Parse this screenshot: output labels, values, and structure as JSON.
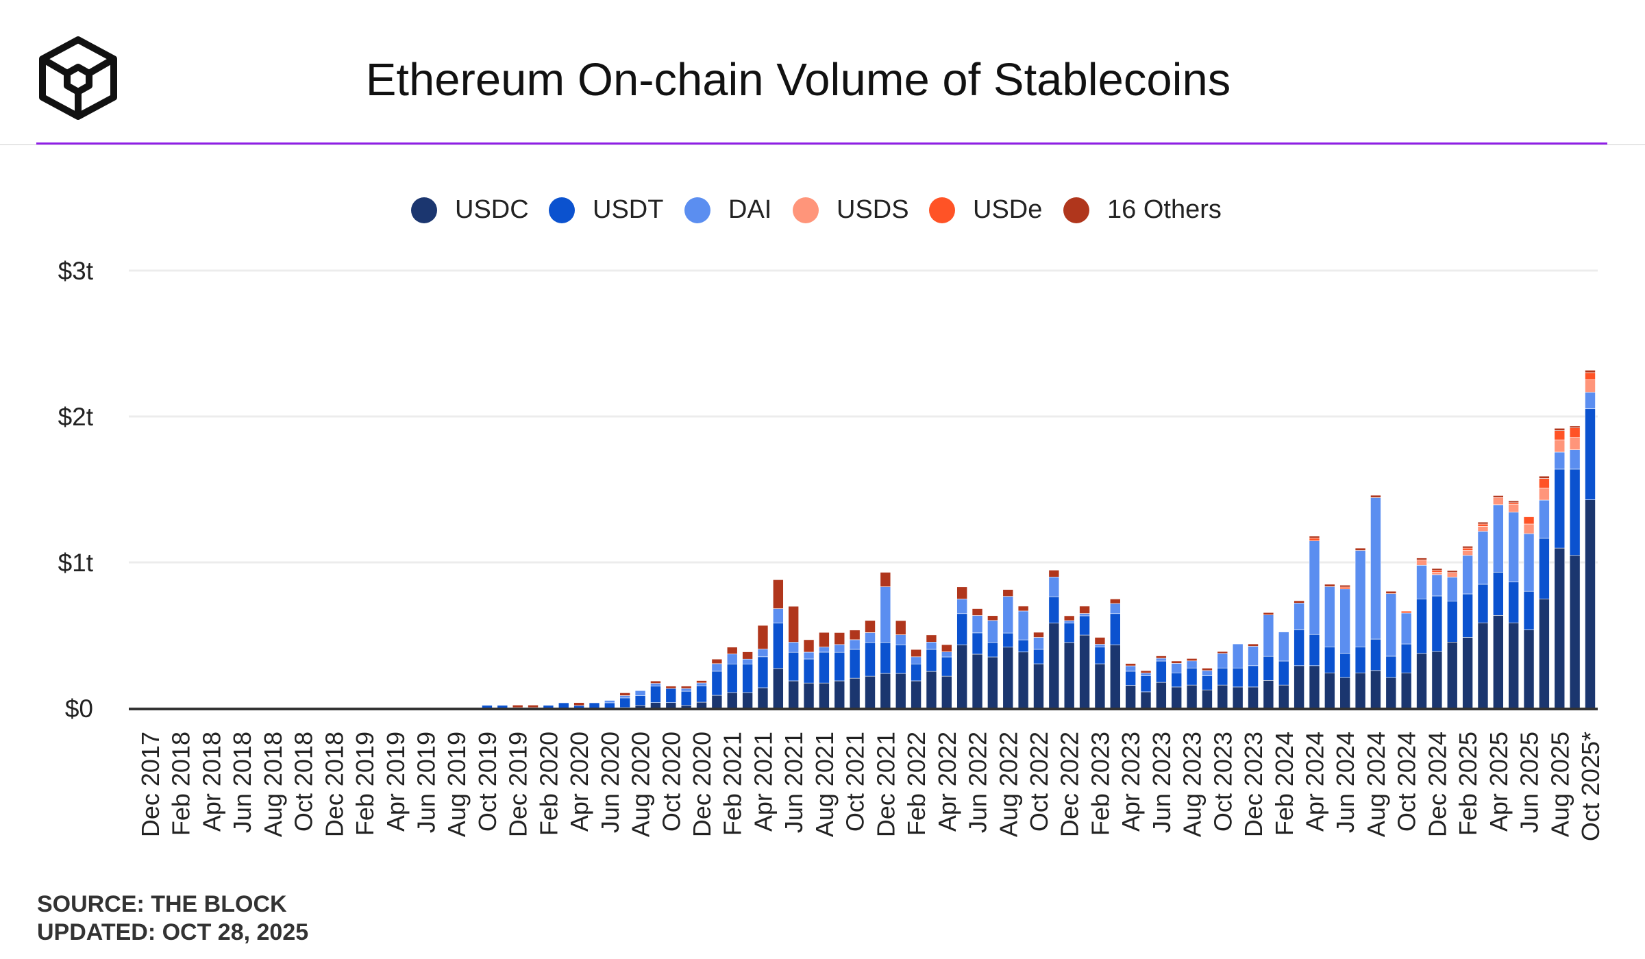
{
  "header": {
    "title": "Ethereum On-chain Volume of Stablecoins",
    "logo": "the-block-cube-logo"
  },
  "legend": [
    {
      "label": "USDC",
      "color": "#1b366f"
    },
    {
      "label": "USDT",
      "color": "#0b52cf"
    },
    {
      "label": "DAI",
      "color": "#5b8ef0"
    },
    {
      "label": "USDS",
      "color": "#ff957a"
    },
    {
      "label": "USDe",
      "color": "#ff5326"
    },
    {
      "label": "16 Others",
      "color": "#b0361c"
    }
  ],
  "footer": {
    "source": "SOURCE: THE BLOCK",
    "updated": "UPDATED: OCT 28, 2025"
  },
  "chart_data": {
    "type": "bar",
    "stacked": true,
    "title": "Ethereum On-chain Volume of Stablecoins",
    "unit": "USD billions",
    "ylim": [
      0,
      3000
    ],
    "yticks": [
      {
        "value": 0,
        "label": "$0"
      },
      {
        "value": 1000,
        "label": "$1t"
      },
      {
        "value": 2000,
        "label": "$2t"
      },
      {
        "value": 3000,
        "label": "$3t"
      }
    ],
    "grid": true,
    "legend_position": "top",
    "categories": [
      "Dec 2017",
      "Jan 2018",
      "Feb 2018",
      "Mar 2018",
      "Apr 2018",
      "May 2018",
      "Jun 2018",
      "Jul 2018",
      "Aug 2018",
      "Sep 2018",
      "Oct 2018",
      "Nov 2018",
      "Dec 2018",
      "Jan 2019",
      "Feb 2019",
      "Mar 2019",
      "Apr 2019",
      "May 2019",
      "Jun 2019",
      "Jul 2019",
      "Aug 2019",
      "Sep 2019",
      "Oct 2019",
      "Nov 2019",
      "Dec 2019",
      "Jan 2020",
      "Feb 2020",
      "Mar 2020",
      "Apr 2020",
      "May 2020",
      "Jun 2020",
      "Jul 2020",
      "Aug 2020",
      "Sep 2020",
      "Oct 2020",
      "Nov 2020",
      "Dec 2020",
      "Jan 2021",
      "Feb 2021",
      "Mar 2021",
      "Apr 2021",
      "May 2021",
      "Jun 2021",
      "Jul 2021",
      "Aug 2021",
      "Sep 2021",
      "Oct 2021",
      "Nov 2021",
      "Dec 2021",
      "Jan 2022",
      "Feb 2022",
      "Mar 2022",
      "Apr 2022",
      "May 2022",
      "Jun 2022",
      "Jul 2022",
      "Aug 2022",
      "Sep 2022",
      "Oct 2022",
      "Nov 2022",
      "Dec 2022",
      "Jan 2023",
      "Feb 2023",
      "Mar 2023",
      "Apr 2023",
      "May 2023",
      "Jun 2023",
      "Jul 2023",
      "Aug 2023",
      "Sep 2023",
      "Oct 2023",
      "Nov 2023",
      "Dec 2023",
      "Jan 2024",
      "Feb 2024",
      "Mar 2024",
      "Apr 2024",
      "May 2024",
      "Jun 2024",
      "Jul 2024",
      "Aug 2024",
      "Sep 2024",
      "Oct 2024",
      "Nov 2024",
      "Dec 2024",
      "Jan 2025",
      "Feb 2025",
      "Mar 2025",
      "Apr 2025",
      "May 2025",
      "Jun 2025",
      "Jul 2025",
      "Aug 2025",
      "Sep 2025",
      "Oct 2025*"
    ],
    "tick_labels": [
      "Dec 2017",
      "Feb 2018",
      "Apr 2018",
      "Jun 2018",
      "Aug 2018",
      "Oct 2018",
      "Dec 2018",
      "Feb 2019",
      "Apr 2019",
      "Jun 2019",
      "Aug 2019",
      "Oct 2019",
      "Dec 2019",
      "Feb 2020",
      "Apr 2020",
      "Jun 2020",
      "Aug 2020",
      "Oct 2020",
      "Dec 2020",
      "Feb 2021",
      "Apr 2021",
      "Jun 2021",
      "Aug 2021",
      "Oct 2021",
      "Dec 2021",
      "Feb 2022",
      "Apr 2022",
      "Jun 2022",
      "Aug 2022",
      "Oct 2022",
      "Dec 2022",
      "Feb 2023",
      "Apr 2023",
      "Jun 2023",
      "Aug 2023",
      "Oct 2023",
      "Dec 2023",
      "Feb 2024",
      "Apr 2024",
      "Jun 2024",
      "Aug 2024",
      "Oct 2024",
      "Dec 2024",
      "Feb 2025",
      "Apr 2025",
      "Jun 2025",
      "Aug 2025",
      "Oct 2025*"
    ],
    "series": [
      {
        "name": "USDC",
        "values": [
          0,
          0,
          0,
          0,
          0,
          0,
          0,
          0,
          0,
          0,
          0,
          0,
          0,
          0,
          0,
          0,
          0,
          0,
          0,
          0,
          0,
          0,
          0,
          0,
          0,
          0,
          0,
          0,
          0,
          0,
          0,
          5,
          20,
          39,
          39,
          20,
          42,
          89,
          108,
          108,
          141,
          273,
          188,
          173,
          173,
          188,
          206,
          220,
          239,
          239,
          188,
          253,
          220,
          435,
          371,
          352,
          419,
          386,
          305,
          584,
          451,
          502,
          305,
          435,
          157,
          113,
          178,
          146,
          159,
          126,
          159,
          146,
          146,
          191,
          159,
          292,
          292,
          243,
          211,
          243,
          259,
          211,
          243,
          376,
          389,
          454,
          486,
          586,
          637,
          586,
          538,
          750,
          1098,
          1048,
          1429
        ]
      },
      {
        "name": "USDT",
        "values": [
          0,
          0,
          0,
          0,
          0,
          0,
          0,
          0,
          0,
          0,
          0,
          0,
          0,
          0,
          0,
          0,
          0,
          0,
          1,
          5,
          5,
          5,
          21,
          21,
          5,
          5,
          21,
          38,
          19,
          38,
          38,
          66,
          66,
          113,
          97,
          97,
          113,
          165,
          196,
          196,
          212,
          311,
          196,
          165,
          212,
          196,
          198,
          231,
          212,
          196,
          116,
          151,
          132,
          214,
          146,
          99,
          97,
          83,
          99,
          181,
          133,
          132,
          115,
          214,
          97,
          110,
          146,
          97,
          117,
          97,
          117,
          130,
          146,
          165,
          165,
          246,
          214,
          178,
          165,
          178,
          215,
          146,
          198,
          374,
          381,
          280,
          298,
          264,
          296,
          280,
          264,
          415,
          541,
          591,
          624
        ]
      },
      {
        "name": "DAI",
        "values": [
          0,
          0,
          0,
          0,
          0,
          0,
          0,
          0,
          0,
          0,
          0,
          0,
          0,
          0,
          0,
          0,
          0,
          0,
          0,
          1,
          1,
          1,
          1,
          1,
          0,
          0,
          1,
          2,
          0,
          2,
          16,
          16,
          35,
          19,
          0,
          19,
          19,
          52,
          68,
          33,
          53,
          99,
          69,
          47,
          35,
          53,
          66,
          68,
          382,
          69,
          49,
          50,
          35,
          100,
          119,
          151,
          251,
          198,
          82,
          135,
          17,
          16,
          19,
          69,
          37,
          19,
          19,
          65,
          49,
          36,
          100,
          165,
          133,
          284,
          199,
          183,
          642,
          413,
          442,
          661,
          970,
          429,
          212,
          230,
          146,
          165,
          264,
          363,
          462,
          478,
          395,
          262,
          117,
          133,
          113
        ]
      },
      {
        "name": "USDS",
        "values": [
          0,
          0,
          0,
          0,
          0,
          0,
          0,
          0,
          0,
          0,
          0,
          0,
          0,
          0,
          0,
          0,
          0,
          0,
          0,
          0,
          0,
          0,
          0,
          0,
          0,
          0,
          0,
          0,
          0,
          0,
          0,
          0,
          0,
          0,
          0,
          0,
          0,
          0,
          0,
          0,
          0,
          0,
          0,
          0,
          0,
          0,
          0,
          0,
          0,
          0,
          0,
          0,
          0,
          0,
          0,
          0,
          0,
          0,
          0,
          0,
          0,
          0,
          0,
          0,
          0,
          0,
          0,
          0,
          0,
          0,
          0,
          0,
          0,
          0,
          0,
          0,
          0,
          0,
          0,
          0,
          0,
          0,
          0,
          37,
          16,
          32,
          34,
          34,
          50,
          52,
          66,
          83,
          84,
          84,
          86
        ]
      },
      {
        "name": "USDe",
        "values": [
          0,
          0,
          0,
          0,
          0,
          0,
          0,
          0,
          0,
          0,
          0,
          0,
          0,
          0,
          0,
          0,
          0,
          0,
          0,
          0,
          0,
          0,
          0,
          0,
          0,
          0,
          0,
          0,
          0,
          0,
          0,
          0,
          0,
          0,
          0,
          0,
          0,
          0,
          0,
          0,
          0,
          0,
          0,
          0,
          0,
          0,
          0,
          0,
          0,
          0,
          0,
          0,
          0,
          0,
          0,
          0,
          0,
          0,
          0,
          0,
          0,
          0,
          0,
          0,
          0,
          0,
          0,
          0,
          0,
          0,
          0,
          0,
          0,
          0,
          0,
          0,
          19,
          0,
          13,
          0,
          0,
          0,
          13,
          0,
          13,
          0,
          16,
          16,
          0,
          13,
          49,
          65,
          63,
          66,
          49
        ]
      },
      {
        "name": "16 Others",
        "values": [
          0,
          0,
          0,
          0,
          0,
          0,
          0,
          0,
          0,
          0,
          0,
          0,
          0,
          0,
          0,
          0,
          0,
          0,
          4,
          0,
          0,
          0,
          0,
          0,
          17,
          17,
          0,
          0,
          20,
          0,
          0,
          19,
          0,
          16,
          16,
          16,
          16,
          31,
          47,
          50,
          162,
          198,
          246,
          85,
          100,
          82,
          66,
          83,
          99,
          97,
          50,
          49,
          49,
          83,
          47,
          33,
          47,
          33,
          35,
          47,
          33,
          50,
          47,
          31,
          16,
          16,
          16,
          16,
          16,
          16,
          13,
          0,
          16,
          16,
          0,
          16,
          13,
          16,
          13,
          16,
          16,
          16,
          0,
          13,
          13,
          13,
          13,
          13,
          13,
          13,
          0,
          16,
          16,
          13,
          16
        ]
      }
    ]
  }
}
